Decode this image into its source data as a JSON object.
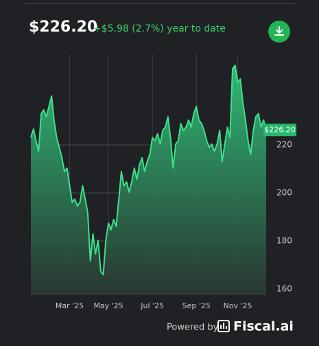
{
  "header": {
    "price": "$226.20",
    "change": "+$5.98 (2.7%) year to date"
  },
  "chart_data": {
    "type": "area",
    "color": "#3ee08a",
    "grid": true,
    "end_label": "$226.20",
    "categories": [
      null,
      null,
      null,
      null,
      null,
      null,
      null,
      null,
      null,
      null,
      null,
      null,
      null,
      null,
      null,
      "Mar '25",
      null,
      null,
      null,
      null,
      null,
      null,
      null,
      null,
      null,
      null,
      null,
      null,
      null,
      null,
      "May '25",
      null,
      null,
      null,
      null,
      null,
      null,
      null,
      null,
      null,
      null,
      null,
      null,
      null,
      null,
      null,
      null,
      "Jul '25",
      null,
      null,
      null,
      null,
      null,
      null,
      null,
      null,
      null,
      null,
      null,
      null,
      null,
      null,
      null,
      null,
      "Sep '25",
      null,
      null,
      null,
      null,
      null,
      null,
      null,
      null,
      null,
      null,
      null,
      null,
      null,
      null,
      null,
      "Nov '25",
      null,
      null,
      null,
      null,
      null,
      null,
      null,
      null,
      null,
      null,
      null
    ],
    "values": [
      223.1,
      226.6,
      221.7,
      217.4,
      233,
      234.6,
      231.7,
      236,
      240.3,
      230,
      223,
      218.9,
      214.6,
      208.9,
      210.3,
      203,
      196,
      197.4,
      194.6,
      196,
      203,
      197.4,
      191.7,
      171.7,
      183,
      174.6,
      180.3,
      167.4,
      166,
      180.3,
      187.4,
      184.6,
      188.9,
      186,
      197.4,
      208.9,
      203,
      204.6,
      200.3,
      204.6,
      210.3,
      205.7,
      211.7,
      214.6,
      208.9,
      213.1,
      216,
      223.1,
      221.7,
      224.6,
      220.3,
      226,
      227.4,
      231.7,
      223,
      210.3,
      220.3,
      221.7,
      228.9,
      226,
      227.4,
      230.3,
      227.4,
      233.1,
      236,
      230.3,
      228.9,
      226,
      221.7,
      218.9,
      220.3,
      217.4,
      220.3,
      226,
      213.1,
      220.3,
      227.4,
      223.1,
      251.7,
      253.1,
      246,
      247.4,
      237.4,
      230.3,
      221.7,
      216,
      226,
      231.7,
      233,
      227.4,
      230.3,
      226.2
    ],
    "ylim": [
      158,
      258
    ],
    "yticks": [
      160,
      180,
      200,
      220
    ]
  },
  "footer": {
    "powered": "Powered by",
    "brand": "Fiscal.ai"
  }
}
